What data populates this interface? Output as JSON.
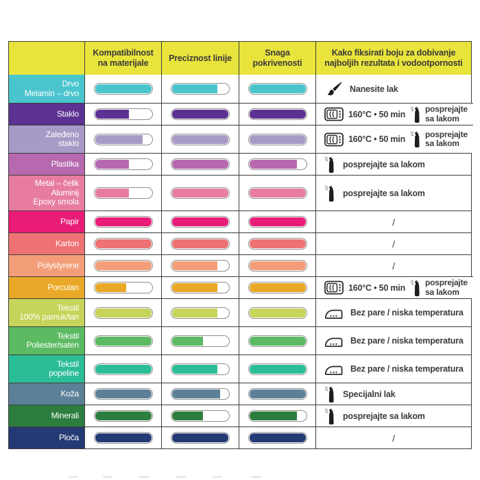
{
  "table": {
    "header": {
      "col_material": "",
      "col_compat": "Kompatibilnost na materijale",
      "col_precision": "Preciznost linije",
      "col_coverage": "Snaga pokrivenosti",
      "col_fix": "Kako fiksirati boju za dobivanje najboljih rezultata i vodootpornosti"
    },
    "colors": {
      "header_bg": "#e9e43c",
      "header_text": "#3a3a3a",
      "grid": "#3c3c3c",
      "pill_border": "#8e8e8e"
    },
    "rows": [
      {
        "label_lines": [
          "Drvo",
          "Melamin – drvo"
        ],
        "color": "#4ac5ce",
        "compat": 100,
        "precision": 80,
        "coverage": 100,
        "fix": {
          "type": "brush",
          "text": "Nanesite lak"
        }
      },
      {
        "label_lines": [
          "Staklo"
        ],
        "color": "#5b3191",
        "compat": 60,
        "precision": 100,
        "coverage": 100,
        "fix": {
          "type": "oven_spray",
          "temp": "160°C • 50 min",
          "spray_lines": [
            "posprejajte",
            "sa lakom"
          ]
        }
      },
      {
        "label_lines": [
          "Zaleđeno",
          "staklo"
        ],
        "color": "#a89ac7",
        "compat": 85,
        "precision": 100,
        "coverage": 100,
        "fix": {
          "type": "oven_spray",
          "temp": "160°C • 50 min",
          "spray_lines": [
            "posprejajte",
            "sa lakom"
          ]
        }
      },
      {
        "label_lines": [
          "Plastika"
        ],
        "color": "#b669ae",
        "compat": 60,
        "precision": 100,
        "coverage": 85,
        "fix": {
          "type": "spray",
          "text": "posprejajte sa lakom"
        }
      },
      {
        "label_lines": [
          "Metal – čelik",
          "Aluminij",
          "Epoxy smola"
        ],
        "color": "#e77ca0",
        "compat": 60,
        "precision": 100,
        "coverage": 100,
        "fix": {
          "type": "spray",
          "text": "posprejajte sa lakom"
        }
      },
      {
        "label_lines": [
          "Papir"
        ],
        "color": "#e91c78",
        "compat": 100,
        "precision": 100,
        "coverage": 100,
        "fix": {
          "type": "none",
          "text": "/"
        }
      },
      {
        "label_lines": [
          "Karton"
        ],
        "color": "#ee7173",
        "compat": 100,
        "precision": 100,
        "coverage": 100,
        "fix": {
          "type": "none",
          "text": "/"
        }
      },
      {
        "label_lines": [
          "Polystyrene"
        ],
        "color": "#f39e78",
        "compat": 100,
        "precision": 80,
        "coverage": 100,
        "fix": {
          "type": "none",
          "text": "/"
        }
      },
      {
        "label_lines": [
          "Porculan"
        ],
        "color": "#e9a827",
        "compat": 55,
        "precision": 80,
        "coverage": 100,
        "fix": {
          "type": "oven_spray",
          "temp": "160°C • 50 min",
          "spray_lines": [
            "posprejajte",
            "sa lakom"
          ]
        }
      },
      {
        "label_lines": [
          "Tekstil",
          "100% pamuk/lan"
        ],
        "color": "#c6d459",
        "compat": 100,
        "precision": 80,
        "coverage": 100,
        "fix": {
          "type": "iron",
          "text": "Bez pare / niska temperatura"
        }
      },
      {
        "label_lines": [
          "Tekstil",
          "Poliester/saten"
        ],
        "color": "#5bba62",
        "compat": 100,
        "precision": 55,
        "coverage": 100,
        "fix": {
          "type": "iron",
          "text": "Bez pare / niska temperatura"
        }
      },
      {
        "label_lines": [
          "Tekstil",
          "popeline"
        ],
        "color": "#2bbd96",
        "compat": 100,
        "precision": 80,
        "coverage": 100,
        "fix": {
          "type": "iron",
          "text": "Bez pare / niska temperatura"
        }
      },
      {
        "label_lines": [
          "Koža"
        ],
        "color": "#5c8098",
        "compat": 100,
        "precision": 85,
        "coverage": 100,
        "fix": {
          "type": "spray",
          "text": "Specijalni lak"
        }
      },
      {
        "label_lines": [
          "Minerali"
        ],
        "color": "#2d7e3e",
        "compat": 100,
        "precision": 55,
        "coverage": 85,
        "fix": {
          "type": "spray",
          "text": "posprejajte sa lakom"
        }
      },
      {
        "label_lines": [
          "Ploča"
        ],
        "color": "#243a74",
        "compat": 100,
        "precision": 100,
        "coverage": 100,
        "fix": {
          "type": "none",
          "text": "/"
        }
      }
    ]
  },
  "chart_data": {
    "type": "table",
    "title": "",
    "categories": [
      "Drvo Melamin – drvo",
      "Staklo",
      "Zaleđeno staklo",
      "Plastika",
      "Metal – čelik Aluminij Epoxy smola",
      "Papir",
      "Karton",
      "Polystyrene",
      "Porculan",
      "Tekstil 100% pamuk/lan",
      "Tekstil Poliester/saten",
      "Tekstil popeline",
      "Koža",
      "Minerali",
      "Ploča"
    ],
    "series": [
      {
        "name": "Kompatibilnost na materijale",
        "values": [
          100,
          60,
          85,
          60,
          60,
          100,
          100,
          100,
          55,
          100,
          100,
          100,
          100,
          100,
          100
        ]
      },
      {
        "name": "Preciznost linije",
        "values": [
          80,
          100,
          100,
          100,
          100,
          100,
          100,
          80,
          80,
          80,
          55,
          80,
          85,
          55,
          100
        ]
      },
      {
        "name": "Snaga pokrivenosti",
        "values": [
          100,
          100,
          100,
          85,
          100,
          100,
          100,
          100,
          100,
          100,
          100,
          100,
          100,
          85,
          100
        ]
      }
    ],
    "fixation_notes": [
      "Nanesite lak",
      "160°C • 50 min posprejajte sa lakom",
      "160°C • 50 min posprejajte sa lakom",
      "posprejajte sa lakom",
      "posprejajte sa lakom",
      "/",
      "/",
      "/",
      "160°C • 50 min posprejajte sa lakom",
      "Bez pare / niska temperatura",
      "Bez pare / niska temperatura",
      "Bez pare / niska temperatura",
      "Specijalni lak",
      "posprejajte sa lakom",
      "/"
    ],
    "legend_position": "none",
    "note": "values are pill fill percentages (0-100)"
  }
}
